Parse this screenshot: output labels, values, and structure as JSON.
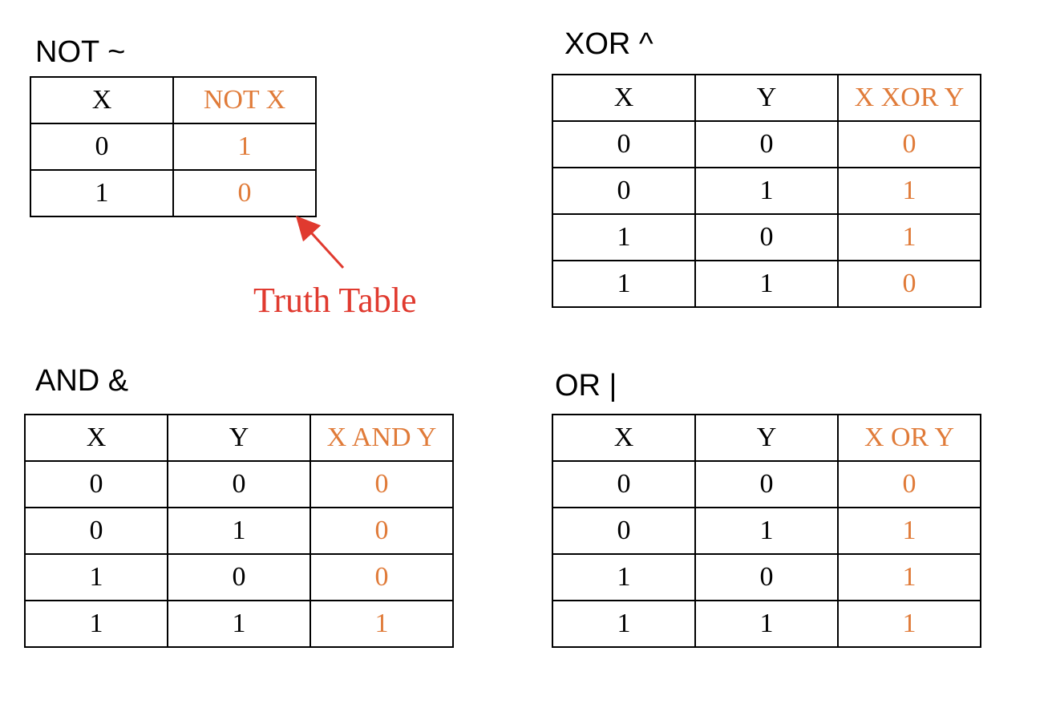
{
  "not_table": {
    "title": "NOT ~",
    "headers": [
      "X",
      "NOT X"
    ],
    "rows": [
      [
        "0",
        "1"
      ],
      [
        "1",
        "0"
      ]
    ]
  },
  "xor_table": {
    "title": "XOR ^",
    "headers": [
      "X",
      "Y",
      "X XOR Y"
    ],
    "rows": [
      [
        "0",
        "0",
        "0"
      ],
      [
        "0",
        "1",
        "1"
      ],
      [
        "1",
        "0",
        "1"
      ],
      [
        "1",
        "1",
        "0"
      ]
    ]
  },
  "and_table": {
    "title": "AND &",
    "headers": [
      "X",
      "Y",
      "X AND Y"
    ],
    "rows": [
      [
        "0",
        "0",
        "0"
      ],
      [
        "0",
        "1",
        "0"
      ],
      [
        "1",
        "0",
        "0"
      ],
      [
        "1",
        "1",
        "1"
      ]
    ]
  },
  "or_table": {
    "title": "OR |",
    "headers": [
      "X",
      "Y",
      "X OR Y"
    ],
    "rows": [
      [
        "0",
        "0",
        "0"
      ],
      [
        "0",
        "1",
        "1"
      ],
      [
        "1",
        "0",
        "1"
      ],
      [
        "1",
        "1",
        "1"
      ]
    ]
  },
  "annotation": {
    "label": "Truth Table"
  },
  "colors": {
    "output_column": "#e07b39",
    "annotation": "#e03a2f",
    "text": "#000000",
    "border": "#000000"
  }
}
